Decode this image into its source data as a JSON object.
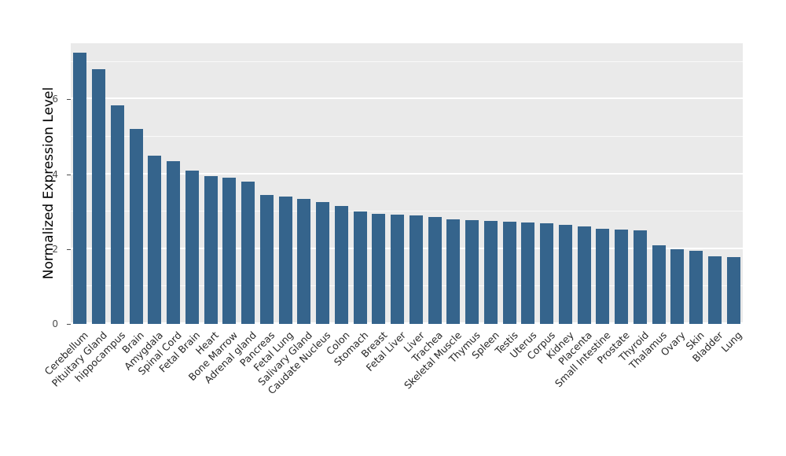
{
  "chart_data": {
    "type": "bar",
    "title": "",
    "xlabel": "",
    "ylabel": "Normalized Expression Level",
    "ylim": [
      0,
      7.5
    ],
    "yticks": [
      0,
      2,
      4,
      6
    ],
    "minor_gridlines": [
      1,
      3,
      5,
      7
    ],
    "grid": true,
    "legend": "none",
    "bar_color": "#35648C",
    "panel_background": "#EAEAEA",
    "gridline_color": "#FFFFFF",
    "axis_text_color": "#262626",
    "categories": [
      "Cerebellum",
      "Pituitary Gland",
      "hippocampus",
      "Brain",
      "Amygdala",
      "Spinal Cord",
      "Fetal Brain",
      "Heart",
      "Bone Marrow",
      "Adrenal gland",
      "Pancreas",
      "Fetal Lung",
      "Salivary Gland",
      "Caudate Nucleus",
      "Colon",
      "Stomach",
      "Breast",
      "Fetal Liver",
      "Liver",
      "Trachea",
      "Skeletal Muscle",
      "Thymus",
      "Spleen",
      "Testis",
      "Uterus",
      "Corpus",
      "Kidney",
      "Placenta",
      "Small Intestine",
      "Prostate",
      "Thyroid",
      "Thalamus",
      "Ovary",
      "Skin",
      "Bladder",
      "Lung"
    ],
    "values": [
      7.25,
      6.8,
      5.85,
      5.2,
      4.5,
      4.35,
      4.1,
      3.95,
      3.9,
      3.8,
      3.45,
      3.4,
      3.35,
      3.25,
      3.15,
      3.0,
      2.95,
      2.92,
      2.9,
      2.85,
      2.8,
      2.78,
      2.75,
      2.73,
      2.7,
      2.68,
      2.65,
      2.6,
      2.55,
      2.52,
      2.5,
      2.1,
      2.0,
      1.95,
      1.8,
      1.78
    ]
  }
}
